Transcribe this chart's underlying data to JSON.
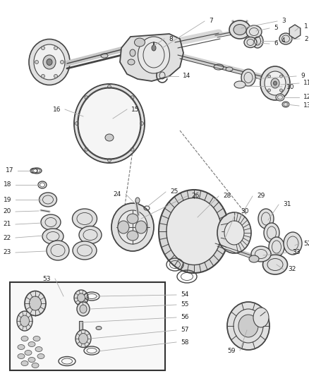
{
  "bg_color": "#ffffff",
  "figsize": [
    4.38,
    5.33
  ],
  "dpi": 100,
  "line_color": "#444444",
  "light_gray": "#e0e0e0",
  "mid_gray": "#cccccc",
  "dark_gray": "#888888",
  "label_color": "#222222",
  "label_fontsize": 6.5,
  "leader_color": "#aaaaaa",
  "dashed_color": "#777777",
  "box_line_color": "#333333"
}
